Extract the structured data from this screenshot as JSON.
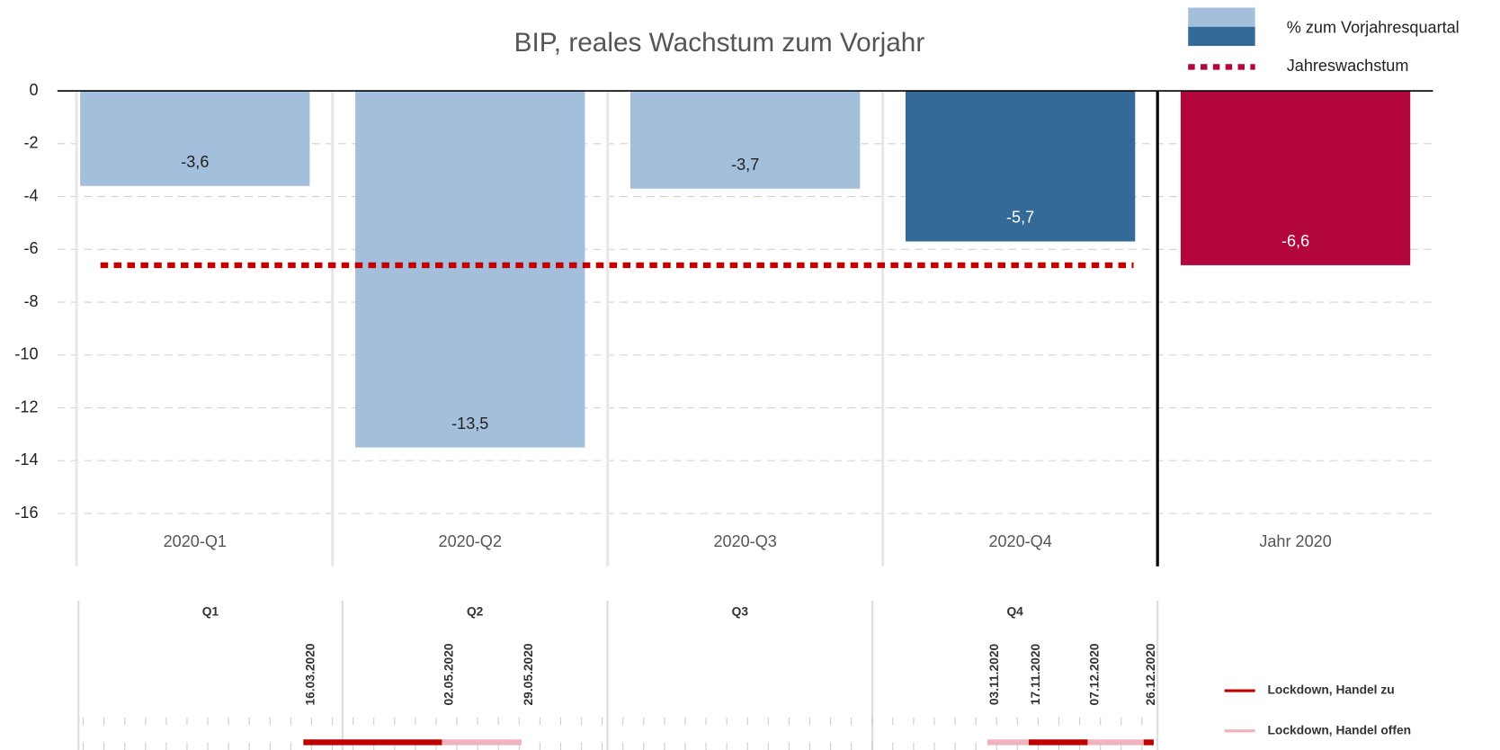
{
  "chart_data": {
    "type": "bar",
    "title": "BIP, reales Wachstum zum Vorjahr",
    "categories": [
      "2020-Q1",
      "2020-Q2",
      "2020-Q3",
      "2020-Q4",
      "Jahr 2020"
    ],
    "values": [
      -3.6,
      -13.5,
      -3.7,
      -5.7,
      -6.6
    ],
    "value_labels": [
      "-3,6",
      "-13,5",
      "-3,7",
      "-5,7",
      "-6,6"
    ],
    "colors": [
      "#a3bfdc",
      "#a3bfdc",
      "#a3bfdc",
      "#336a98",
      "#b2063d"
    ],
    "legend": [
      "% zum Vorjahresquartal",
      "Jahreswachstum"
    ],
    "annual_line": {
      "name": "Jahreswachstum",
      "value": -6.6,
      "color": "#c00000"
    },
    "ylim": [
      -18,
      0
    ],
    "yticks": [
      0,
      -2,
      -4,
      -6,
      -8,
      -10,
      -12,
      -14,
      -16
    ],
    "grid": true
  },
  "timeline": {
    "quarters": [
      "Q1",
      "Q2",
      "Q3",
      "Q4"
    ],
    "dates": [
      "16.03.2020",
      "02.05.2020",
      "29.05.2020",
      "03.11.2020",
      "17.11.2020",
      "07.12.2020",
      "26.12.2020"
    ],
    "legend": [
      {
        "name": "Lockdown, Handel zu",
        "color": "#c00000"
      },
      {
        "name": "Lockdown, Handel offen",
        "color": "#f0b3bc"
      }
    ]
  }
}
